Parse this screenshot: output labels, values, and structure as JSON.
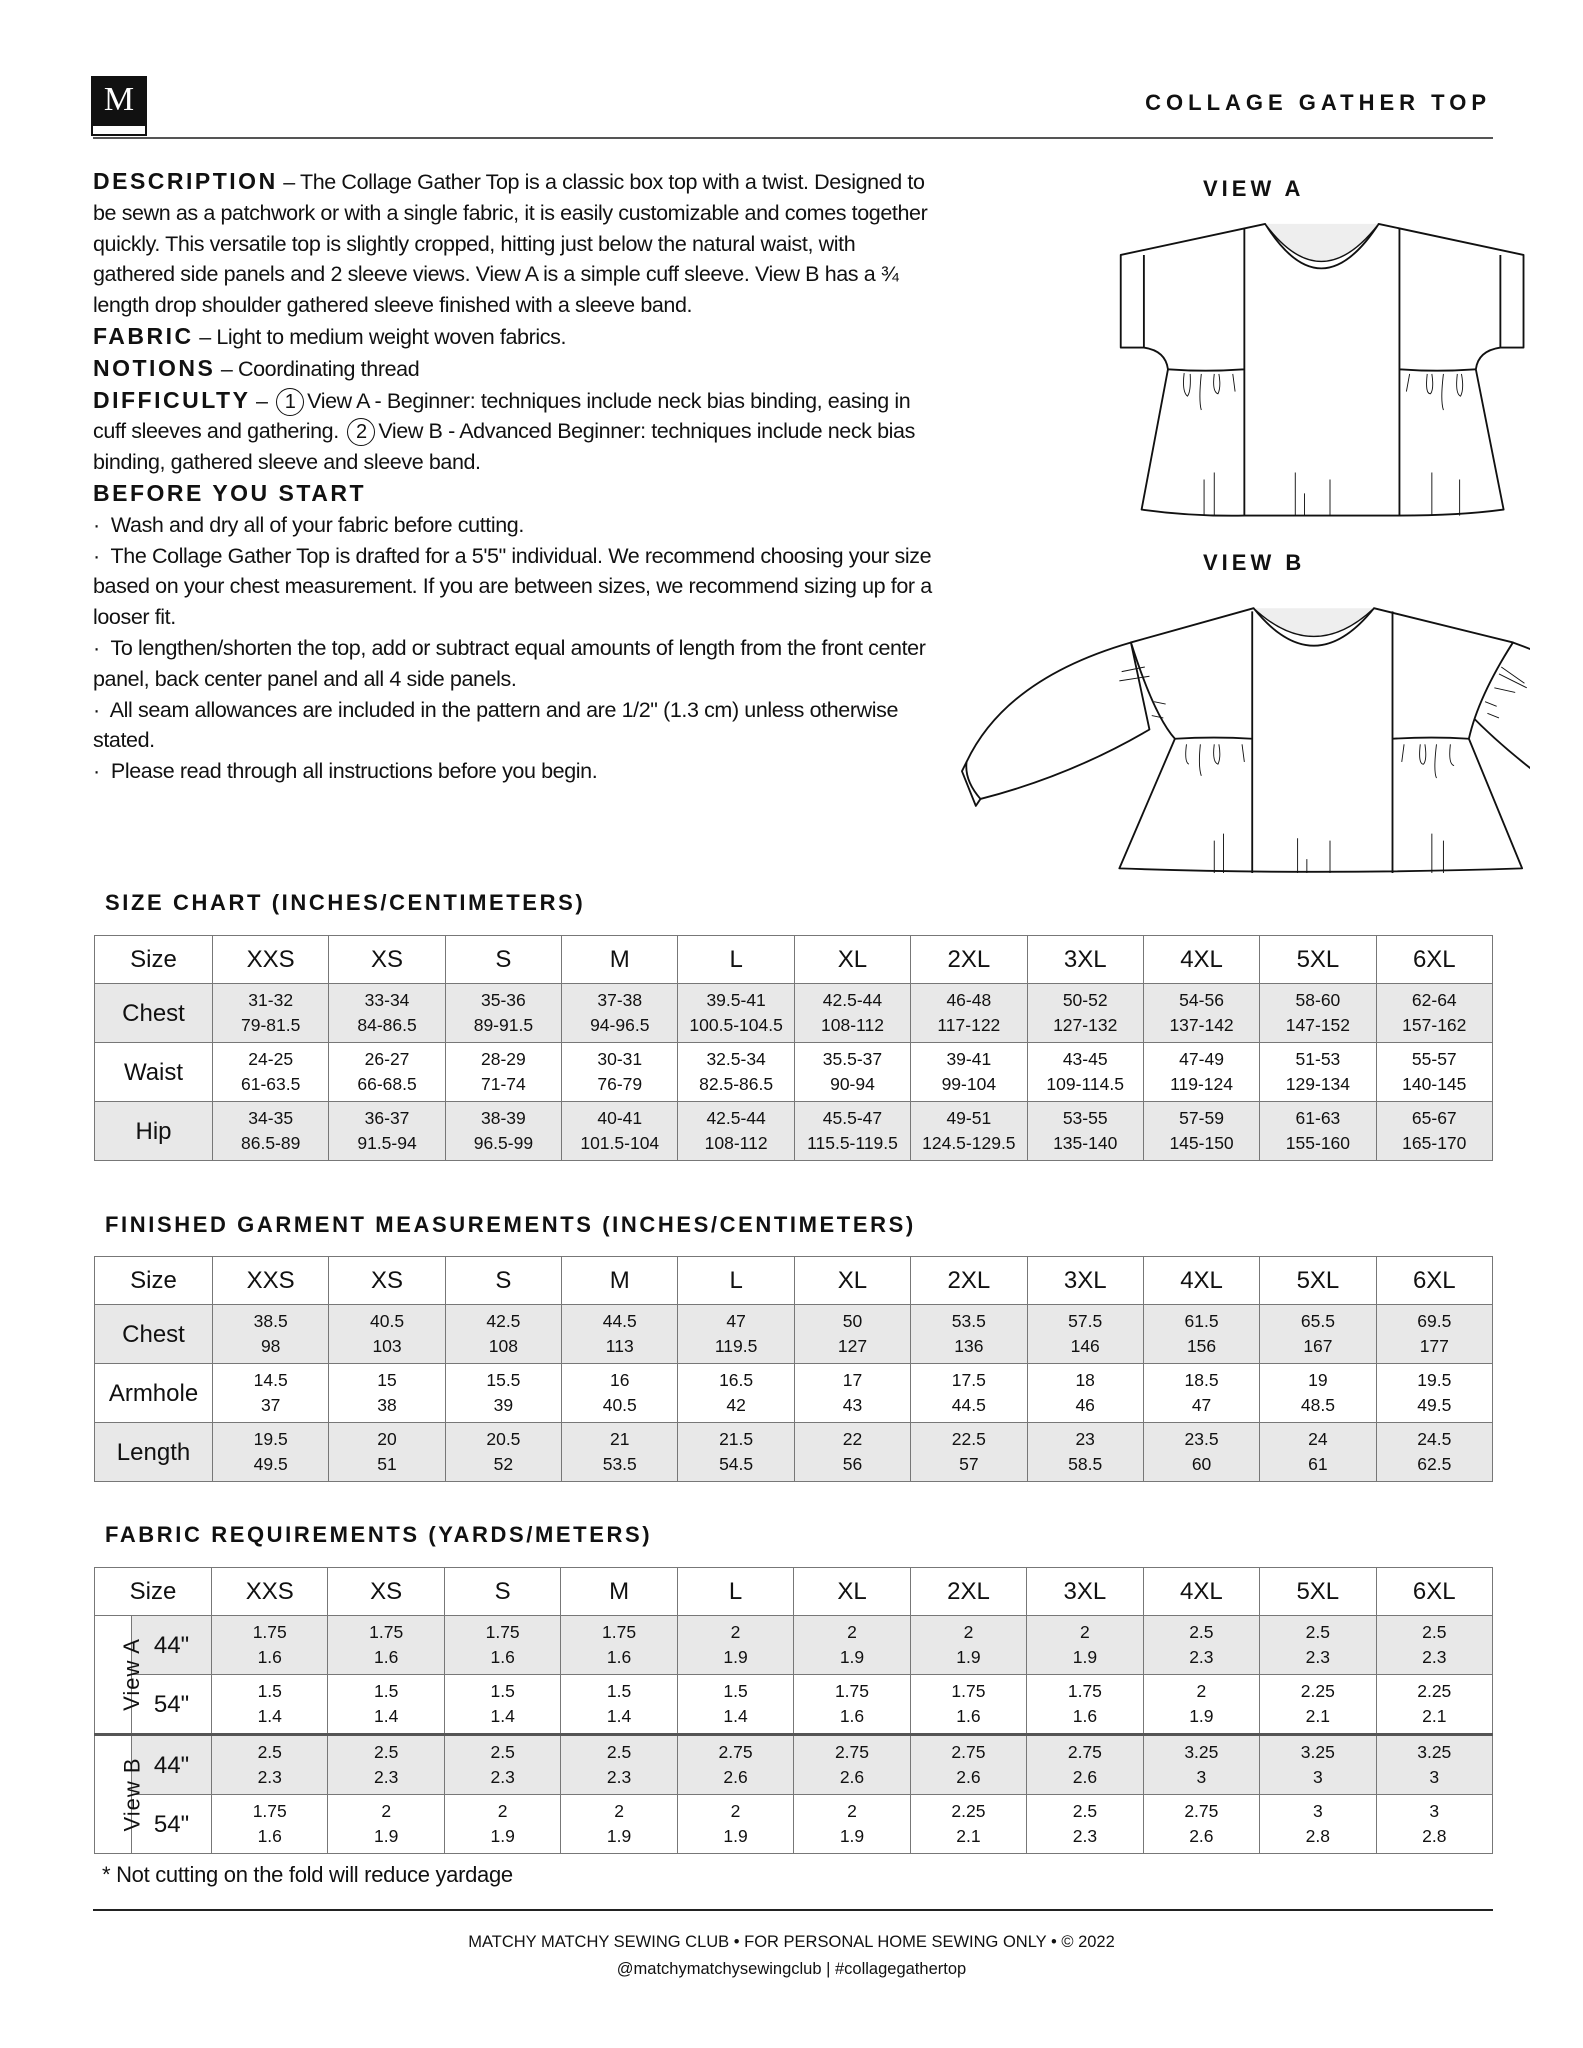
{
  "header": {
    "logo_letter": "M",
    "title": "COLLAGE GATHER TOP"
  },
  "description": {
    "label": "DESCRIPTION",
    "text": "The Collage Gather Top is a classic box top with a twist. Designed to be sewn as a patchwork or with a single fabric, it is easily customizable and comes together quickly. This versatile top is slightly cropped, hitting just below the natural waist, with gathered side panels and 2 sleeve views. View A is a simple cuff sleeve. View B has a ¾ length drop shoulder gathered sleeve finished with a sleeve band.",
    "fabric_label": "FABRIC",
    "fabric_text": "Light to medium weight woven fabrics.",
    "notions_label": "NOTIONS",
    "notions_text": "Coordinating thread",
    "difficulty_label": "DIFFICULTY",
    "difficulty_1_num": "1",
    "difficulty_1_text": "View A - Beginner: techniques include neck bias binding, easing in cuff sleeves and gathering.",
    "difficulty_2_num": "2",
    "difficulty_2_text": "View B - Advanced Beginner: techniques include neck bias binding, gathered sleeve and sleeve band.",
    "before_label": "BEFORE YOU START",
    "before_items": [
      "Wash and dry all of your fabric before cutting.",
      "The Collage Gather Top is drafted for a 5'5\" individual. We recommend choosing your size based on your chest measurement. If you are between sizes, we recommend sizing up for a looser fit.",
      "To lengthen/shorten the top, add or subtract equal amounts of length from the front center panel, back center panel and all 4 side panels.",
      "All seam allowances are included in the pattern and are 1/2\" (1.3 cm) unless otherwise stated.",
      "Please read through all instructions before you begin."
    ]
  },
  "views": {
    "a_label": "VIEW A",
    "b_label": "VIEW B"
  },
  "size_chart": {
    "title": "SIZE CHART (INCHES/CENTIMETERS)",
    "header": [
      "Size",
      "XXS",
      "XS",
      "S",
      "M",
      "L",
      "XL",
      "2XL",
      "3XL",
      "4XL",
      "5XL",
      "6XL"
    ],
    "rows": [
      {
        "label": "Chest",
        "in": [
          "31-32",
          "33-34",
          "35-36",
          "37-38",
          "39.5-41",
          "42.5-44",
          "46-48",
          "50-52",
          "54-56",
          "58-60",
          "62-64"
        ],
        "cm": [
          "79-81.5",
          "84-86.5",
          "89-91.5",
          "94-96.5",
          "100.5-104.5",
          "108-112",
          "117-122",
          "127-132",
          "137-142",
          "147-152",
          "157-162"
        ]
      },
      {
        "label": "Waist",
        "in": [
          "24-25",
          "26-27",
          "28-29",
          "30-31",
          "32.5-34",
          "35.5-37",
          "39-41",
          "43-45",
          "47-49",
          "51-53",
          "55-57"
        ],
        "cm": [
          "61-63.5",
          "66-68.5",
          "71-74",
          "76-79",
          "82.5-86.5",
          "90-94",
          "99-104",
          "109-114.5",
          "119-124",
          "129-134",
          "140-145"
        ]
      },
      {
        "label": "Hip",
        "in": [
          "34-35",
          "36-37",
          "38-39",
          "40-41",
          "42.5-44",
          "45.5-47",
          "49-51",
          "53-55",
          "57-59",
          "61-63",
          "65-67"
        ],
        "cm": [
          "86.5-89",
          "91.5-94",
          "96.5-99",
          "101.5-104",
          "108-112",
          "115.5-119.5",
          "124.5-129.5",
          "135-140",
          "145-150",
          "155-160",
          "165-170"
        ]
      }
    ]
  },
  "finished": {
    "title": "FINISHED GARMENT MEASUREMENTS (INCHES/CENTIMETERS)",
    "header": [
      "Size",
      "XXS",
      "XS",
      "S",
      "M",
      "L",
      "XL",
      "2XL",
      "3XL",
      "4XL",
      "5XL",
      "6XL"
    ],
    "rows": [
      {
        "label": "Chest",
        "in": [
          "38.5",
          "40.5",
          "42.5",
          "44.5",
          "47",
          "50",
          "53.5",
          "57.5",
          "61.5",
          "65.5",
          "69.5"
        ],
        "cm": [
          "98",
          "103",
          "108",
          "113",
          "119.5",
          "127",
          "136",
          "146",
          "156",
          "167",
          "177"
        ]
      },
      {
        "label": "Armhole",
        "in": [
          "14.5",
          "15",
          "15.5",
          "16",
          "16.5",
          "17",
          "17.5",
          "18",
          "18.5",
          "19",
          "19.5"
        ],
        "cm": [
          "37",
          "38",
          "39",
          "40.5",
          "42",
          "43",
          "44.5",
          "46",
          "47",
          "48.5",
          "49.5"
        ]
      },
      {
        "label": "Length",
        "in": [
          "19.5",
          "20",
          "20.5",
          "21",
          "21.5",
          "22",
          "22.5",
          "23",
          "23.5",
          "24",
          "24.5"
        ],
        "cm": [
          "49.5",
          "51",
          "52",
          "53.5",
          "54.5",
          "56",
          "57",
          "58.5",
          "60",
          "61",
          "62.5"
        ]
      }
    ]
  },
  "fabric_req": {
    "title": "FABRIC REQUIREMENTS (YARDS/METERS)",
    "header": [
      "Size",
      "XXS",
      "XS",
      "S",
      "M",
      "L",
      "XL",
      "2XL",
      "3XL",
      "4XL",
      "5XL",
      "6XL"
    ],
    "groups": [
      {
        "view": "View A",
        "rows": [
          {
            "width": "44\"",
            "yd": [
              "1.75",
              "1.75",
              "1.75",
              "1.75",
              "2",
              "2",
              "2",
              "2",
              "2.5",
              "2.5",
              "2.5"
            ],
            "m": [
              "1.6",
              "1.6",
              "1.6",
              "1.6",
              "1.9",
              "1.9",
              "1.9",
              "1.9",
              "2.3",
              "2.3",
              "2.3"
            ]
          },
          {
            "width": "54\"",
            "yd": [
              "1.5",
              "1.5",
              "1.5",
              "1.5",
              "1.5",
              "1.75",
              "1.75",
              "1.75",
              "2",
              "2.25",
              "2.25"
            ],
            "m": [
              "1.4",
              "1.4",
              "1.4",
              "1.4",
              "1.4",
              "1.6",
              "1.6",
              "1.6",
              "1.9",
              "2.1",
              "2.1"
            ]
          }
        ]
      },
      {
        "view": "View B",
        "rows": [
          {
            "width": "44\"",
            "yd": [
              "2.5",
              "2.5",
              "2.5",
              "2.5",
              "2.75",
              "2.75",
              "2.75",
              "2.75",
              "3.25",
              "3.25",
              "3.25"
            ],
            "m": [
              "2.3",
              "2.3",
              "2.3",
              "2.3",
              "2.6",
              "2.6",
              "2.6",
              "2.6",
              "3",
              "3",
              "3"
            ]
          },
          {
            "width": "54\"",
            "yd": [
              "1.75",
              "2",
              "2",
              "2",
              "2",
              "2",
              "2.25",
              "2.5",
              "2.75",
              "3",
              "3"
            ],
            "m": [
              "1.6",
              "1.9",
              "1.9",
              "1.9",
              "1.9",
              "1.9",
              "2.1",
              "2.3",
              "2.6",
              "2.8",
              "2.8"
            ]
          }
        ]
      }
    ],
    "footnote": "* Not cutting on the fold will reduce yardage"
  },
  "footer": {
    "line1": "MATCHY MATCHY SEWING CLUB • FOR PERSONAL HOME SEWING ONLY • © 2022",
    "line2": "@matchymatchysewingclub | #collagegathertop"
  }
}
